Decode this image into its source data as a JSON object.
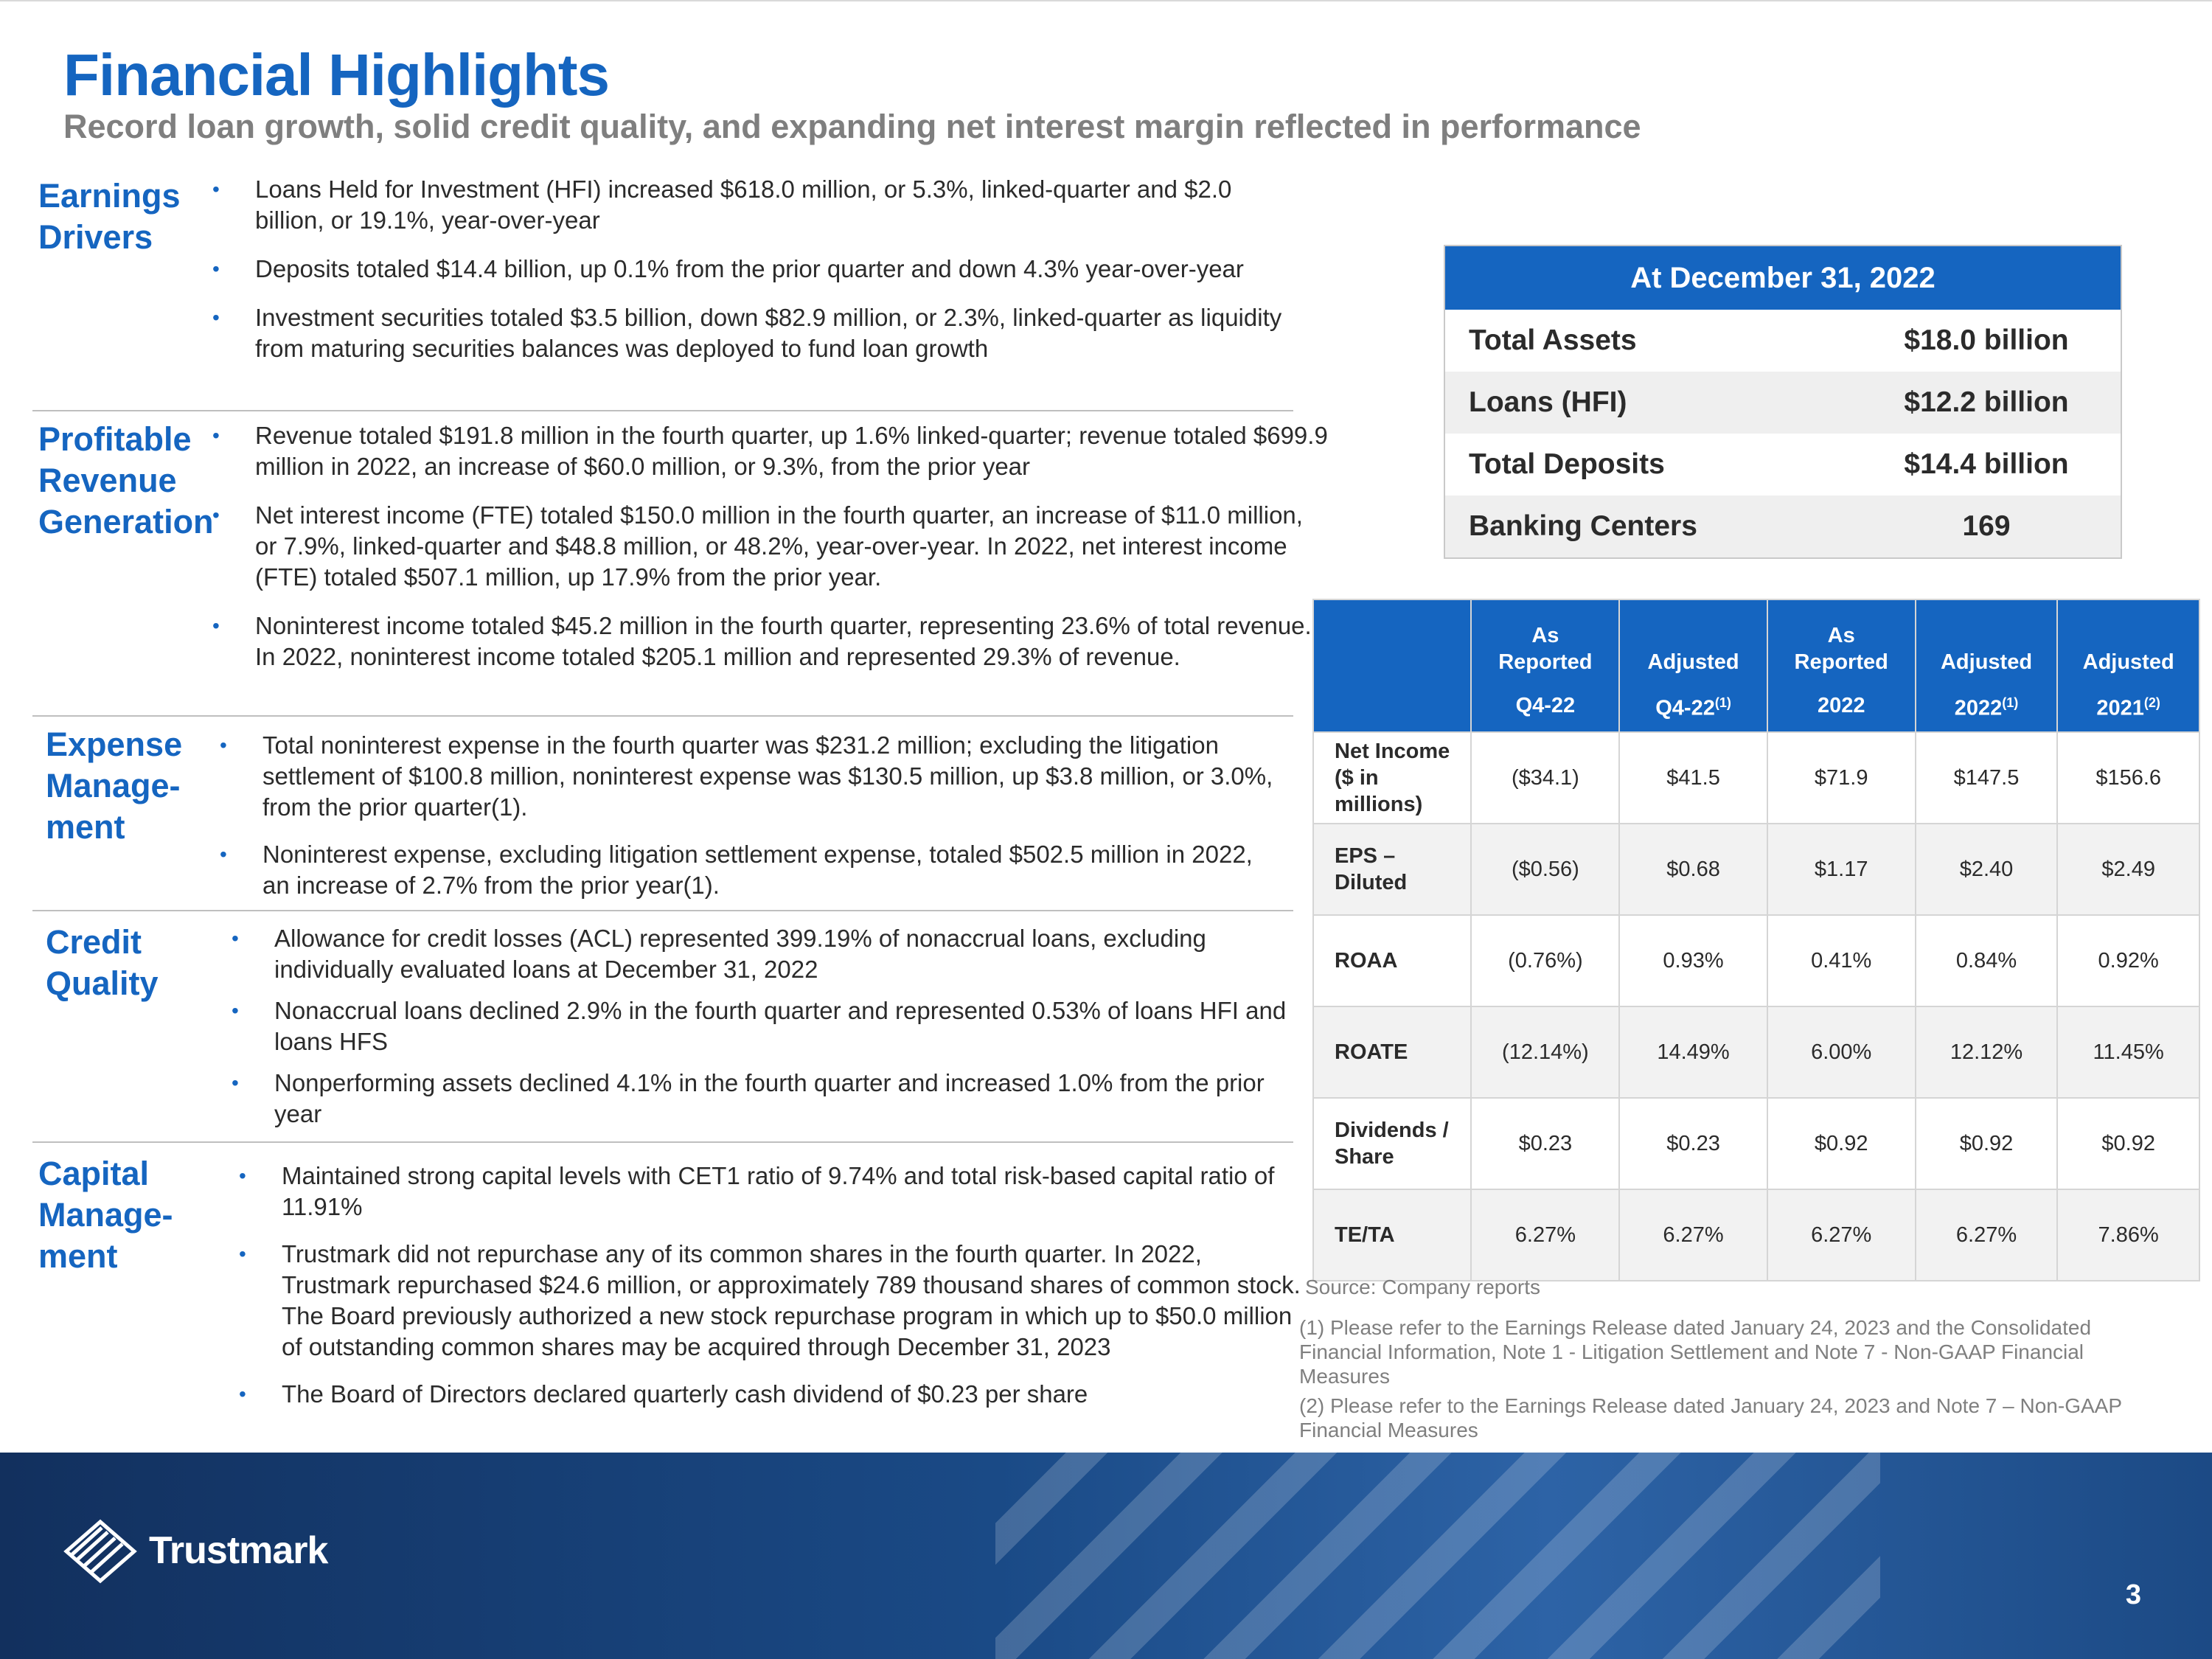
{
  "title": "Financial Highlights",
  "subtitle": "Record loan growth, solid credit quality, and expanding net interest margin reflected in performance",
  "sections": [
    {
      "label": "Earnings\nDrivers",
      "bullets": [
        "Loans Held for Investment (HFI) increased $618.0 million, or 5.3%, linked-quarter and $2.0 billion, or 19.1%, year-over-year",
        "Deposits totaled $14.4 billion, up 0.1% from the prior quarter and down 4.3%  year-over-year",
        "Investment securities totaled $3.5 billion, down $82.9 million,  or 2.3%, linked-quarter as liquidity from maturing securities balances was deployed to fund loan growth"
      ]
    },
    {
      "label": "Profitable\nRevenue\nGeneration",
      "bullets": [
        "Revenue totaled $191.8 million in the fourth quarter, up 1.6% linked-quarter; revenue totaled $699.9 million in 2022, an increase of $60.0 million, or 9.3%, from the prior year",
        "Net interest income (FTE) totaled $150.0 million in the fourth quarter, an increase of $11.0 million, or 7.9%, linked-quarter and $48.8 million, or 48.2%, year-over-year. In 2022, net interest income (FTE) totaled $507.1 million, up 17.9% from the prior year.",
        "Noninterest income totaled $45.2 million in the fourth quarter, representing 23.6% of total revenue.  In 2022, noninterest income totaled $205.1 million and represented 29.3% of revenue."
      ]
    },
    {
      "label": "Expense\nManage-\nment",
      "bullets": [
        "Total noninterest expense in the fourth quarter was $231.2 million; excluding the litigation settlement of $100.8 million, noninterest expense was $130.5 million, up $3.8 million, or 3.0%, from the prior quarter(1).",
        "Noninterest expense, excluding litigation settlement expense, totaled $502.5 million in 2022, an increase of 2.7% from the prior year(1)."
      ]
    },
    {
      "label": "Credit\nQuality",
      "bullets": [
        "Allowance for credit losses (ACL) represented 399.19% of nonaccrual loans, excluding individually evaluated loans at December 31, 2022",
        "Nonaccrual loans declined 2.9% in the fourth quarter and represented 0.53% of loans HFI and loans HFS",
        "Nonperforming assets declined 4.1% in the fourth quarter and increased 1.0% from the prior year"
      ]
    },
    {
      "label": "Capital\nManage-\nment",
      "bullets": [
        "Maintained strong capital levels with CET1 ratio of 9.74% and total risk-based capital ratio of 11.91%",
        "Trustmark did not repurchase any of its common shares in the fourth quarter. In 2022, Trustmark repurchased $24.6 million, or approximately 789 thousand shares of common stock. The Board previously  authorized a new stock repurchase program in which up to $50.0 million of outstanding common shares may be acquired through December 31, 2023",
        "The Board of Directors declared quarterly cash dividend of $0.23 per share"
      ]
    }
  ],
  "stats": {
    "header": "At December 31, 2022",
    "rows": [
      {
        "label": "Total Assets",
        "value": "$18.0 billion"
      },
      {
        "label": "Loans (HFI)",
        "value": "$12.2 billion"
      },
      {
        "label": "Total Deposits",
        "value": "$14.4 billion"
      },
      {
        "label": "Banking Centers",
        "value": "169"
      }
    ]
  },
  "metrics": {
    "headers_top": [
      "",
      "As\nReported",
      "Adjusted",
      "As\nReported",
      "Adjusted",
      "Adjusted"
    ],
    "headers_bottom": [
      "",
      "Q4-22",
      "Q4-22(1)",
      "2022",
      "2022(1)",
      "2021(2)"
    ],
    "rows": [
      {
        "label": "Net Income\n($ in\nmillions)",
        "values": [
          "($34.1)",
          "$41.5",
          "$71.9",
          "$147.5",
          "$156.6"
        ]
      },
      {
        "label": "EPS –\nDiluted",
        "values": [
          "($0.56)",
          "$0.68",
          "$1.17",
          "$2.40",
          "$2.49"
        ]
      },
      {
        "label": "ROAA",
        "values": [
          "(0.76%)",
          "0.93%",
          "0.41%",
          "0.84%",
          "0.92%"
        ]
      },
      {
        "label": "ROATE",
        "values": [
          "(12.14%)",
          "14.49%",
          "6.00%",
          "12.12%",
          "11.45%"
        ]
      },
      {
        "label": "Dividends /\nShare",
        "values": [
          "$0.23",
          "$0.23",
          "$0.92",
          "$0.92",
          "$0.92"
        ]
      },
      {
        "label": "TE/TA",
        "values": [
          "6.27%",
          "6.27%",
          "6.27%",
          "6.27%",
          "7.86%"
        ]
      }
    ]
  },
  "source": "Source: Company reports",
  "footnotes": [
    "(1)  Please refer to the Earnings Release dated January 24, 2023 and the Consolidated Financial Information, Note 1 - Litigation  Settlement and Note 7 -  Non-GAAP Financial Measures",
    "(2) Please refer to the Earnings Release dated January 24, 2023 and Note 7 – Non-GAAP Financial Measures"
  ],
  "footer": {
    "logo_text": "Trustmark",
    "page_number": "3"
  },
  "colors": {
    "brand_blue": "#1565c0",
    "footer_navy": "#12305e"
  }
}
